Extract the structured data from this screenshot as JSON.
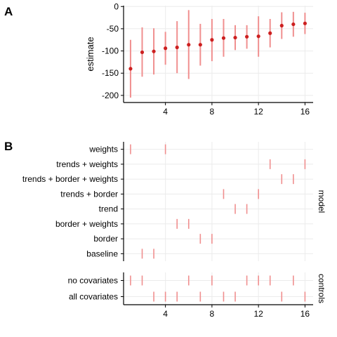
{
  "chart_data": [
    {
      "panel": "A",
      "type": "scatter",
      "ylabel": "estimate",
      "xlim": [
        0.4,
        16.7
      ],
      "ylim": [
        -216,
        2
      ],
      "x_ticks": [
        4,
        8,
        12,
        16
      ],
      "y_ticks": [
        0,
        -50,
        -100,
        -150,
        -200
      ],
      "y_tick_labels": [
        "0",
        "-50",
        "-100",
        "-150",
        "-200"
      ],
      "grid": true,
      "point_color": "#cc1f1f",
      "interval_color": "#f08f8f",
      "points": [
        {
          "x": 1,
          "y": -140,
          "low": -205,
          "high": -75
        },
        {
          "x": 2,
          "y": -103,
          "low": -158,
          "high": -47
        },
        {
          "x": 3,
          "y": -101,
          "low": -153,
          "high": -49
        },
        {
          "x": 4,
          "y": -94,
          "low": -131,
          "high": -57
        },
        {
          "x": 5,
          "y": -92,
          "low": -150,
          "high": -33
        },
        {
          "x": 6,
          "y": -86,
          "low": -163,
          "high": -8
        },
        {
          "x": 7,
          "y": -86,
          "low": -133,
          "high": -39
        },
        {
          "x": 8,
          "y": -75,
          "low": -123,
          "high": -28
        },
        {
          "x": 9,
          "y": -71,
          "low": -113,
          "high": -28
        },
        {
          "x": 10,
          "y": -70,
          "low": -98,
          "high": -42
        },
        {
          "x": 11,
          "y": -68,
          "low": -95,
          "high": -42
        },
        {
          "x": 12,
          "y": -67,
          "low": -113,
          "high": -22
        },
        {
          "x": 13,
          "y": -60,
          "low": -92,
          "high": -28
        },
        {
          "x": 14,
          "y": -43,
          "low": -73,
          "high": -13
        },
        {
          "x": 15,
          "y": -40,
          "low": -68,
          "high": -12
        },
        {
          "x": 16,
          "y": -38,
          "low": -62,
          "high": -14
        }
      ]
    },
    {
      "panel": "B",
      "type": "table",
      "xlim": [
        0.4,
        16.7
      ],
      "x_ticks": [
        4,
        8,
        12,
        16
      ],
      "mark_color": "#f08f8f",
      "grid": true,
      "facets": [
        {
          "strip": "model",
          "rows": [
            {
              "label": "weights",
              "x": [
                1,
                4
              ]
            },
            {
              "label": "trends + weights",
              "x": [
                13,
                16
              ]
            },
            {
              "label": "trends + border + weights",
              "x": [
                14,
                15
              ]
            },
            {
              "label": "trends + border",
              "x": [
                9,
                12
              ]
            },
            {
              "label": "trend",
              "x": [
                10,
                11
              ]
            },
            {
              "label": "border + weights",
              "x": [
                5,
                6
              ]
            },
            {
              "label": "border",
              "x": [
                7,
                8
              ]
            },
            {
              "label": "baseline",
              "x": [
                2,
                3
              ]
            }
          ]
        },
        {
          "strip": "controls",
          "rows": [
            {
              "label": "no covariates",
              "x": [
                1,
                2,
                6,
                8,
                11,
                12,
                13,
                15
              ]
            },
            {
              "label": "all covariates",
              "x": [
                3,
                4,
                5,
                7,
                9,
                10,
                14,
                16
              ]
            }
          ]
        }
      ]
    }
  ]
}
